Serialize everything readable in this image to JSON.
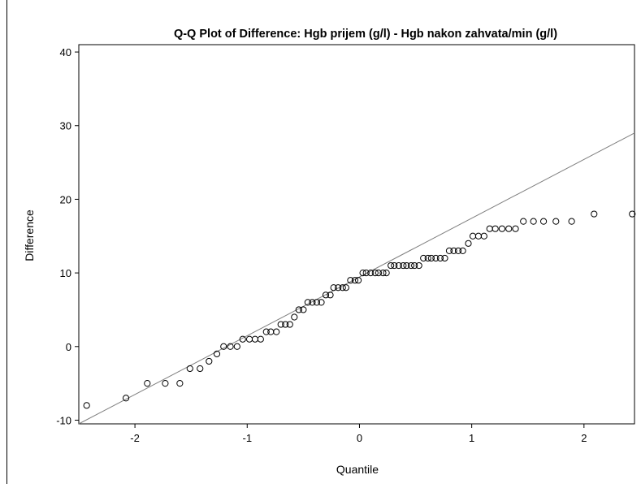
{
  "chart_data": {
    "type": "scatter",
    "title": "Q-Q Plot of Difference: Hgb prijem (g/l) - Hgb nakon zahvata/min (g/l)",
    "xlabel": "Quantile",
    "ylabel": "Difference",
    "xlim": [
      -2.5,
      2.45
    ],
    "ylim": [
      -10.5,
      41
    ],
    "x_ticks": [
      -2,
      -1,
      0,
      1,
      2
    ],
    "x_tick_labels": [
      "-2",
      "-1",
      "0",
      "1",
      "2"
    ],
    "y_ticks": [
      -10,
      0,
      10,
      20,
      30,
      40
    ],
    "y_tick_labels": [
      "-10",
      "0",
      "10",
      "20",
      "30",
      "40"
    ],
    "grid": false,
    "reference_line": {
      "x": [
        -2.5,
        2.45
      ],
      "y": [
        -10.5,
        29.0
      ]
    },
    "series": [
      {
        "marker": "open-circle",
        "color": "#000000",
        "points": [
          [
            -2.43,
            -8
          ],
          [
            -2.08,
            -7
          ],
          [
            -1.89,
            -5
          ],
          [
            -1.73,
            -5
          ],
          [
            -1.6,
            -5
          ],
          [
            -1.51,
            -3
          ],
          [
            -1.42,
            -3
          ],
          [
            -1.34,
            -2
          ],
          [
            -1.27,
            -1
          ],
          [
            -1.21,
            0
          ],
          [
            -1.15,
            0
          ],
          [
            -1.09,
            0
          ],
          [
            -1.04,
            1
          ],
          [
            -0.98,
            1
          ],
          [
            -0.93,
            1
          ],
          [
            -0.88,
            1
          ],
          [
            -0.83,
            2
          ],
          [
            -0.79,
            2
          ],
          [
            -0.74,
            2
          ],
          [
            -0.7,
            3
          ],
          [
            -0.66,
            3
          ],
          [
            -0.62,
            3
          ],
          [
            -0.58,
            4
          ],
          [
            -0.54,
            5
          ],
          [
            -0.5,
            5
          ],
          [
            -0.46,
            6
          ],
          [
            -0.42,
            6
          ],
          [
            -0.38,
            6
          ],
          [
            -0.34,
            6
          ],
          [
            -0.3,
            7
          ],
          [
            -0.26,
            7
          ],
          [
            -0.23,
            8
          ],
          [
            -0.19,
            8
          ],
          [
            -0.15,
            8
          ],
          [
            -0.12,
            8
          ],
          [
            -0.08,
            9
          ],
          [
            -0.04,
            9
          ],
          [
            -0.01,
            9
          ],
          [
            0.03,
            10
          ],
          [
            0.06,
            10
          ],
          [
            0.1,
            10
          ],
          [
            0.14,
            10
          ],
          [
            0.17,
            10
          ],
          [
            0.21,
            10
          ],
          [
            0.24,
            10
          ],
          [
            0.28,
            11
          ],
          [
            0.31,
            11
          ],
          [
            0.35,
            11
          ],
          [
            0.39,
            11
          ],
          [
            0.42,
            11
          ],
          [
            0.46,
            11
          ],
          [
            0.49,
            11
          ],
          [
            0.53,
            11
          ],
          [
            0.57,
            12
          ],
          [
            0.61,
            12
          ],
          [
            0.64,
            12
          ],
          [
            0.68,
            12
          ],
          [
            0.72,
            12
          ],
          [
            0.76,
            12
          ],
          [
            0.8,
            13
          ],
          [
            0.84,
            13
          ],
          [
            0.88,
            13
          ],
          [
            0.92,
            13
          ],
          [
            0.97,
            14
          ],
          [
            1.01,
            15
          ],
          [
            1.06,
            15
          ],
          [
            1.11,
            15
          ],
          [
            1.16,
            16
          ],
          [
            1.21,
            16
          ],
          [
            1.27,
            16
          ],
          [
            1.33,
            16
          ],
          [
            1.39,
            16
          ],
          [
            1.46,
            17
          ],
          [
            1.55,
            17
          ],
          [
            1.64,
            17
          ],
          [
            1.75,
            17
          ],
          [
            1.89,
            17
          ],
          [
            2.09,
            18
          ],
          [
            2.43,
            18
          ]
        ]
      }
    ]
  }
}
